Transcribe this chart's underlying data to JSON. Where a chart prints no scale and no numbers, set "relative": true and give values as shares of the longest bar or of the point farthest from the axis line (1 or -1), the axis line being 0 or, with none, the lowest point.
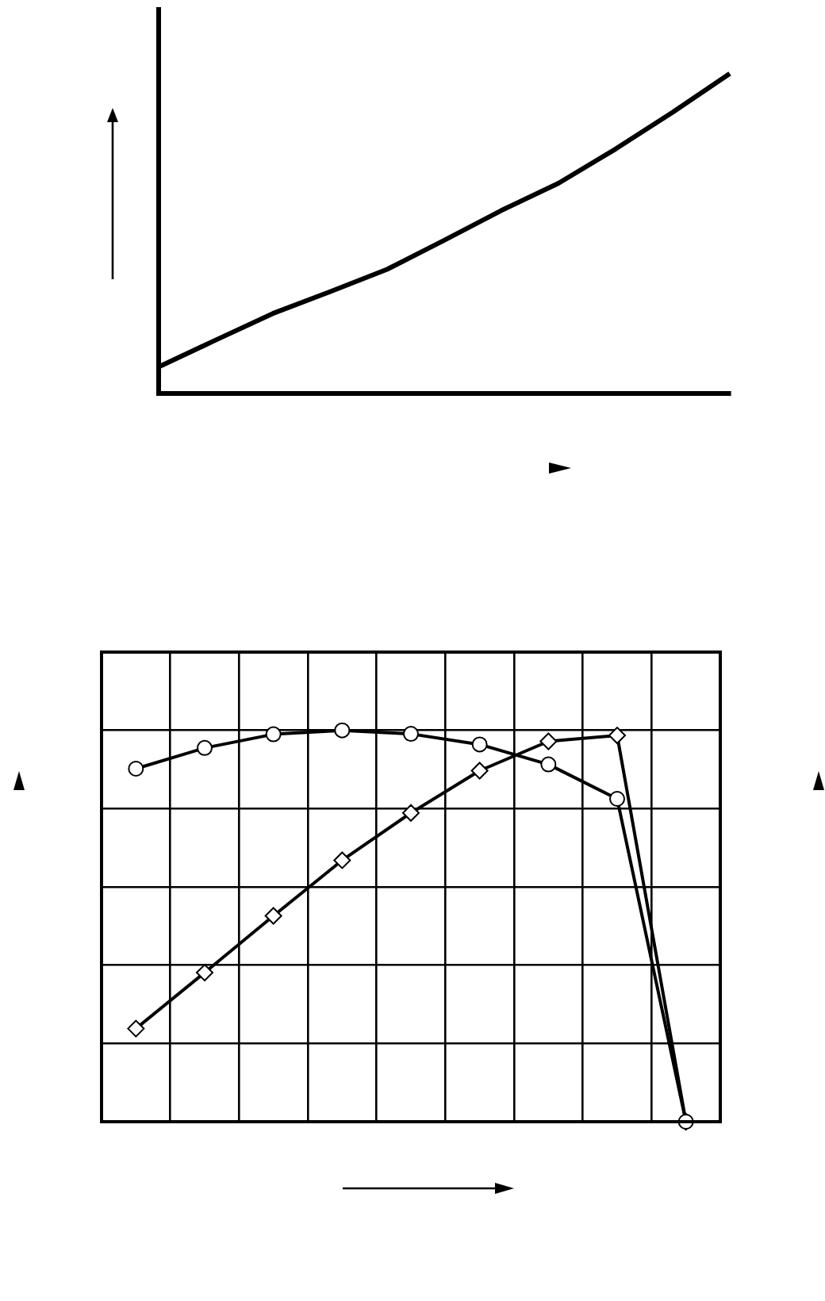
{
  "chart_data": [
    {
      "type": "line",
      "relative": true,
      "categories": [
        null,
        null,
        null,
        null,
        null,
        null,
        null,
        null,
        null,
        null,
        null
      ],
      "color": "#000000",
      "values": [
        0.083,
        0.167,
        0.25,
        0.318,
        0.388,
        0.479,
        0.572,
        0.657,
        0.764,
        0.879,
        1
      ]
    },
    {
      "type": "line",
      "relative": true,
      "grid": true,
      "categories": [
        null,
        null,
        null,
        null,
        null,
        null,
        null,
        null,
        null
      ],
      "series": [
        {
          "color": "#000000",
          "marker": "circle",
          "values": [
            0.902,
            0.955,
            0.99,
            1,
            0.991,
            0.964,
            0.913,
            0.825,
            0
          ]
        },
        {
          "color": "#000000",
          "marker": "diamond",
          "values": [
            0.238,
            0.381,
            0.526,
            0.668,
            0.789,
            0.897,
            0.972,
            0.987,
            0
          ]
        }
      ]
    }
  ]
}
